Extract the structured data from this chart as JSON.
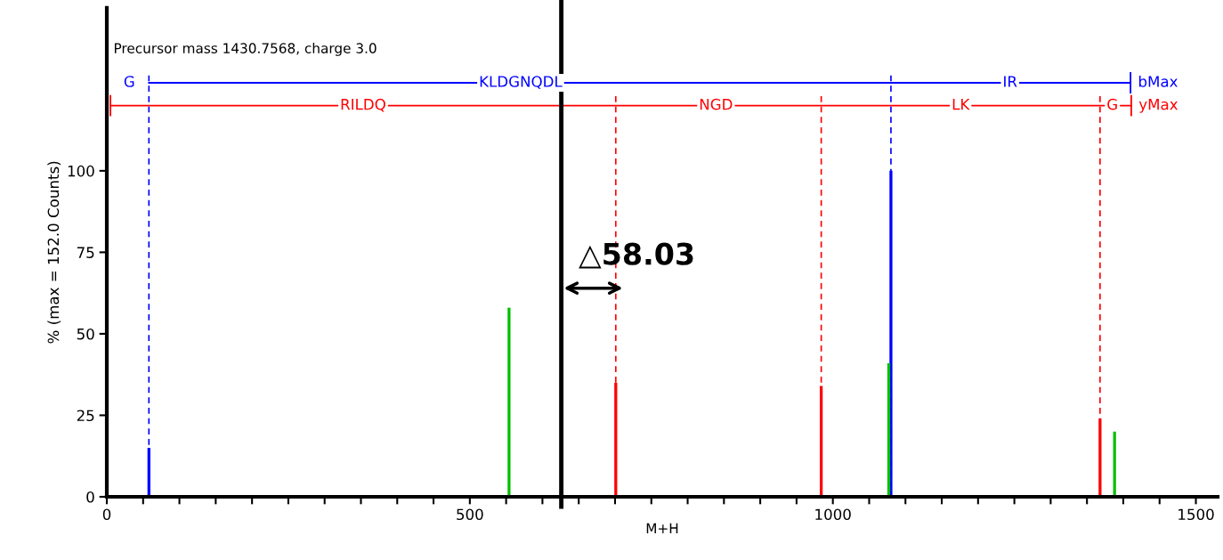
{
  "chart_data": {
    "type": "bar",
    "xlabel": "M+H",
    "ylabel": "% (max = 152.0 Counts)",
    "xlim": [
      0,
      1530
    ],
    "ylim": [
      0,
      150
    ],
    "xticks": [
      0,
      {
        "value": 50,
        "label": null
      },
      {
        "value": 100,
        "label": null
      },
      {
        "value": 150,
        "label": null
      },
      {
        "value": 200,
        "label": null
      },
      {
        "value": 250,
        "label": null
      },
      {
        "value": 300,
        "label": null
      },
      {
        "value": 350,
        "label": null
      },
      {
        "value": 400,
        "label": null
      },
      {
        "value": 450,
        "label": null
      },
      500,
      {
        "value": 550,
        "label": null
      },
      {
        "value": 600,
        "label": null
      },
      {
        "value": 650,
        "label": null
      },
      {
        "value": 700,
        "label": null
      },
      {
        "value": 750,
        "label": null
      },
      {
        "value": 800,
        "label": null
      },
      {
        "value": 850,
        "label": null
      },
      {
        "value": 900,
        "label": null
      },
      {
        "value": 950,
        "label": null
      },
      1000,
      {
        "value": 1050,
        "label": null
      },
      {
        "value": 1100,
        "label": null
      },
      {
        "value": 1150,
        "label": null
      },
      {
        "value": 1200,
        "label": null
      },
      {
        "value": 1250,
        "label": null
      },
      {
        "value": 1300,
        "label": null
      },
      {
        "value": 1350,
        "label": null
      },
      {
        "value": 1400,
        "label": null
      },
      {
        "value": 1450,
        "label": null
      },
      1500
    ],
    "yticks": [
      0,
      25,
      50,
      75,
      100
    ],
    "grid": false,
    "legend": false,
    "series": [
      {
        "color": "#0000ff",
        "x": [
          58,
          1080
        ],
        "values": [
          15,
          100
        ]
      },
      {
        "color": "#ff0000",
        "x": [
          701,
          984,
          1368
        ],
        "values": [
          35,
          34,
          24
        ]
      },
      {
        "color": "#00c000",
        "x": [
          554,
          1077,
          1388
        ],
        "values": [
          58,
          41,
          20
        ]
      },
      {
        "type": "line",
        "color": "#0000ff",
        "x": [
          58,
          1080,
          1410
        ],
        "values": [
          127,
          127,
          127
        ]
      },
      {
        "type": "line",
        "color": "#ff0000",
        "x": [
          5,
          701,
          984,
          1368,
          1411
        ],
        "values": [
          120,
          120,
          120,
          120,
          120
        ]
      }
    ],
    "ref_lines": [
      {
        "axis": "x",
        "value": 58,
        "color": "#0000ff",
        "line_style": "dashed"
      },
      {
        "axis": "x",
        "value": 1080,
        "color": "#0000ff",
        "line_style": "dashed"
      },
      {
        "axis": "x",
        "value": 701,
        "color": "#ff0000",
        "line_style": "dashed"
      },
      {
        "axis": "x",
        "value": 984,
        "color": "#ff0000",
        "line_style": "dashed"
      },
      {
        "axis": "x",
        "value": 1368,
        "color": "#ff0000",
        "line_style": "dashed"
      },
      {
        "axis": "x",
        "value": 626,
        "color": "#000000",
        "line_style": "solid"
      }
    ],
    "annotations": [
      "Precursor mass 1430.7568, charge 3.0",
      {
        "text": "G",
        "x": 31,
        "y": 127
      },
      {
        "text": "KLDGNQDL",
        "x": 570,
        "y": 127
      },
      {
        "text": "IR",
        "x": 1244,
        "y": 127
      },
      {
        "text": "bMax",
        "x": 1410,
        "y": 127
      },
      {
        "text": "RILDQ",
        "x": 353,
        "y": 120
      },
      {
        "text": "NGD",
        "x": 839,
        "y": 120
      },
      {
        "text": "LK",
        "x": 1176,
        "y": 120
      },
      {
        "text": "G",
        "x": 1385,
        "y": 120
      },
      {
        "text": "yMax",
        "x": 1411,
        "y": 120
      },
      {
        "text": "△58.03",
        "x": 626,
        "y": 64
      }
    ]
  }
}
